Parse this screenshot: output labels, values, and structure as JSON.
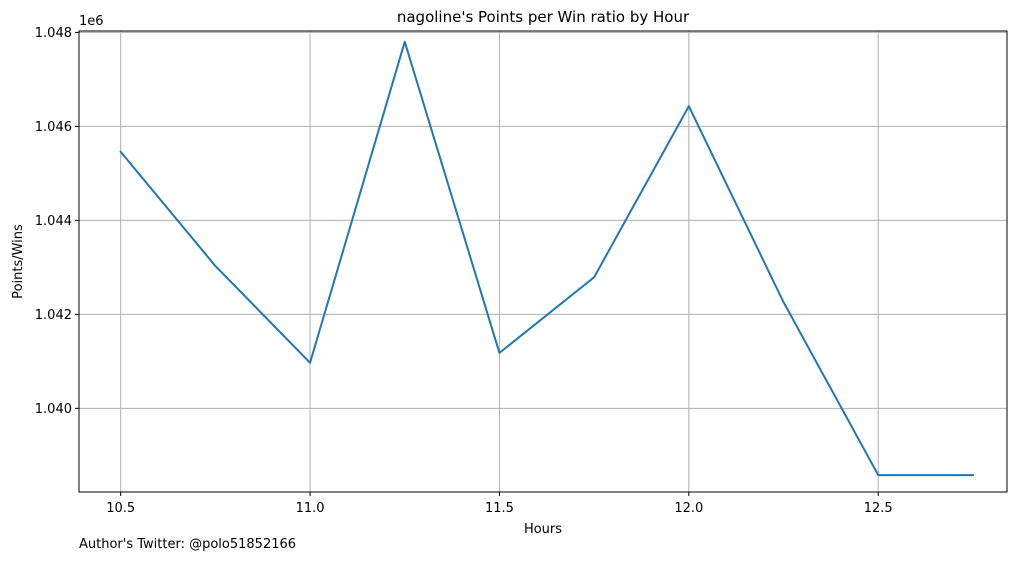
{
  "chart_data": {
    "type": "line",
    "title": "nagoline's Points per Win ratio by Hour",
    "xlabel": "Hours",
    "ylabel": "Points/Wins",
    "y_offset_label": "1e6",
    "xlim": [
      10.39,
      12.84
    ],
    "ylim": [
      1.03822,
      1.04803
    ],
    "x_ticks": [
      10.5,
      11.0,
      11.5,
      12.0,
      12.5
    ],
    "x_tick_labels": [
      "10.5",
      "11.0",
      "11.5",
      "12.0",
      "12.5"
    ],
    "y_ticks": [
      1.04,
      1.042,
      1.044,
      1.046,
      1.048
    ],
    "y_tick_labels": [
      "1.040",
      "1.042",
      "1.044",
      "1.046",
      "1.048"
    ],
    "grid": true,
    "series": [
      {
        "name": "Points/Wins",
        "color": "#1f77b4",
        "x": [
          10.5,
          10.75,
          11.0,
          11.25,
          11.5,
          11.75,
          12.0,
          12.25,
          12.5,
          12.75
        ],
        "y": [
          1.04546,
          1.04303,
          1.04097,
          1.0478,
          1.04118,
          1.04279,
          1.04643,
          1.04226,
          1.03858,
          1.03858
        ]
      }
    ]
  },
  "footer": {
    "author_text": "Author's Twitter: @polo51852166"
  }
}
